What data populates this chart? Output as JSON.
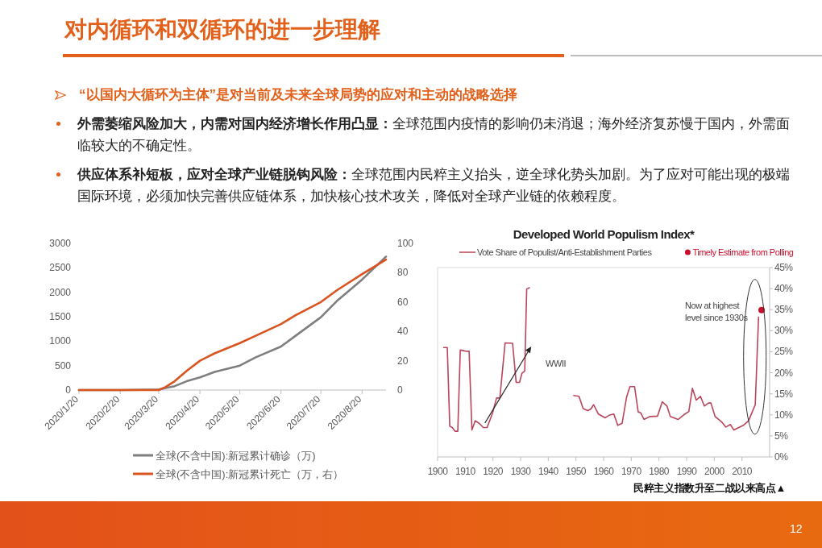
{
  "chart_data": [
    {
      "type": "other",
      "title": "对内循环和双循环的进一步理解",
      "annotations": [
        "“以国内大循环为主体”是对当前及未来全球局势的应对和主动的战略选择",
        "外需萎缩风险加大，内需对国内经济增长作用凸显：",
        "全球范围内疫情的影响仍未消退；海外经济复苏慢于国内，外需面临较大的不确定性。",
        "供应体系补短板，应对全球产业链脱钩风险：",
        "全球范围内民粹主义抬头，逆全球化势头加剧。为了应对可能出现的极端国际环境，必须加快完善供应链体系，加快核心技术攻关，降低对全球产业链的依赖程度。",
        "12"
      ]
    },
    {
      "type": "line",
      "legend": "bottom",
      "xlim": [
        "2020-01-20",
        "2020-09-07"
      ],
      "xticks": [
        {
          "value": "2020-01-20",
          "label": "2020/1/20"
        },
        {
          "value": "2020-02-20",
          "label": "2020/2/20"
        },
        {
          "value": "2020-03-20",
          "label": "2020/3/20"
        },
        {
          "value": "2020-04-20",
          "label": "2020/4/20"
        },
        {
          "value": "2020-05-20",
          "label": "2020/5/20"
        },
        {
          "value": "2020-06-20",
          "label": "2020/6/20"
        },
        {
          "value": "2020-07-20",
          "label": "2020/7/20"
        },
        {
          "value": "2020-08-20",
          "label": "2020/8/20"
        }
      ],
      "ylim": [
        0,
        3000
      ],
      "yticks": [
        0,
        500,
        1000,
        1500,
        2000,
        2500,
        3000
      ],
      "y2lim": [
        0,
        100
      ],
      "y2ticks": [
        0,
        20,
        40,
        60,
        80,
        100
      ],
      "series": [
        {
          "name": "全球(不含中国):新冠累计确诊（万)",
          "color": "#7f7f7f",
          "x": [
            "2020-01-20",
            "2020-02-20",
            "2020-03-20",
            "2020-03-25",
            "2020-04-01",
            "2020-04-10",
            "2020-04-20",
            "2020-05-01",
            "2020-05-20",
            "2020-06-01",
            "2020-06-20",
            "2020-07-01",
            "2020-07-20",
            "2020-08-01",
            "2020-08-20",
            "2020-09-07"
          ],
          "values": [
            0,
            0,
            10,
            40,
            80,
            180,
            260,
            370,
            500,
            670,
            890,
            1110,
            1490,
            1820,
            2260,
            2730
          ]
        },
        {
          "name": "全球(不含中国):新冠累计死亡（万，右）",
          "color": "#d9541e",
          "axis": "y2",
          "x": [
            "2020-01-20",
            "2020-02-20",
            "2020-03-20",
            "2020-03-25",
            "2020-04-01",
            "2020-04-10",
            "2020-04-20",
            "2020-05-01",
            "2020-05-20",
            "2020-06-01",
            "2020-06-20",
            "2020-07-01",
            "2020-07-20",
            "2020-08-01",
            "2020-08-20",
            "2020-09-07"
          ],
          "values": [
            0,
            0,
            0,
            2,
            6,
            13,
            20,
            25,
            32,
            37,
            45,
            51,
            60,
            68,
            79,
            89
          ]
        }
      ]
    },
    {
      "type": "line",
      "title": "Developed World Populism Index*",
      "legend": "top",
      "xlim": [
        1900,
        2020
      ],
      "xticks": [
        1900,
        1910,
        1920,
        1930,
        1940,
        1950,
        1960,
        1970,
        1980,
        1990,
        2000,
        2010
      ],
      "ylim": [
        0,
        45
      ],
      "yticks": [
        {
          "value": 0,
          "label": "0%"
        },
        {
          "value": 5,
          "label": "5%"
        },
        {
          "value": 10,
          "label": "10%"
        },
        {
          "value": 15,
          "label": "15%"
        },
        {
          "value": 20,
          "label": "20%"
        },
        {
          "value": 25,
          "label": "25%"
        },
        {
          "value": 30,
          "label": "30%"
        },
        {
          "value": 35,
          "label": "35%"
        },
        {
          "value": 40,
          "label": "40%"
        },
        {
          "value": 45,
          "label": "45%"
        }
      ],
      "annotations": [
        "WWII",
        "Now at highest level since 1930s",
        "民粹主义指数升至二战以来高点▲"
      ],
      "series": [
        {
          "name": "Vote Share of Populist/Anti-Establishment Parties",
          "color": "#b8455a",
          "x": [
            1902.2,
            1903.5,
            1904.4,
            1905.3,
            1906.3,
            1907.3,
            1908.2,
            1909.7,
            1910.7,
            1911.4,
            1912.4,
            1913.6,
            1915,
            1916.5,
            1917.9,
            1919.9,
            1921.3,
            1922.5,
            1924.4,
            1927.1,
            1928.4,
            1929.6,
            1930.5,
            1931.5,
            1932.2,
            1933.2
          ],
          "values": [
            26,
            26,
            7.3,
            7,
            6.1,
            6.1,
            25.4,
            25.2,
            25.1,
            25.1,
            6.4,
            8.6,
            8,
            7,
            7,
            10.5,
            14,
            14,
            27.1,
            27,
            17.7,
            17.7,
            19.9,
            20.4,
            39.9,
            40.2
          ]
        },
        {
          "color": "#b8455a",
          "x": [
            1949.2,
            1951.1,
            1952.6,
            1954.3,
            1955.4,
            1956.4,
            1958.1,
            1960.6,
            1962,
            1963.7,
            1965.1,
            1966.7,
            1968.3,
            1969.5,
            1971.2,
            1972.5,
            1973.4,
            1974.6,
            1976.7,
            1979.5,
            1981.2,
            1982.9,
            1984.1,
            1986.9,
            1989.4,
            1990.8,
            1992.1,
            1993.5,
            1995,
            1996.4,
            1997.9,
            1998.8,
            2000.3,
            2002.7,
            2004.2,
            2005.8,
            2007.1,
            2010.5,
            2012.4,
            2014.8,
            2016
          ],
          "values": [
            14.6,
            14.4,
            11.5,
            11,
            11.4,
            12.4,
            10.2,
            9.3,
            9.9,
            10.2,
            7.5,
            8,
            14.2,
            16.7,
            16.7,
            10.7,
            10.5,
            8.9,
            9.6,
            9.7,
            13.1,
            12.1,
            9.6,
            8.9,
            10.2,
            10.8,
            16.3,
            13.5,
            14.4,
            12.1,
            12.8,
            12.8,
            9.6,
            8.3,
            7.1,
            7.7,
            6.4,
            7.5,
            8.6,
            12.4,
            33.2
          ]
        },
        {
          "name": "Timely Estimate from Polling",
          "type": "scatter",
          "color": "#c8102e",
          "x": [
            2017.1
          ],
          "values": [
            34.9
          ]
        }
      ]
    }
  ]
}
